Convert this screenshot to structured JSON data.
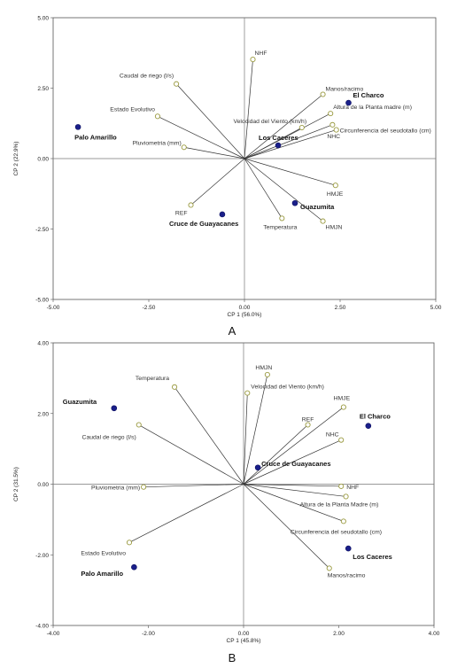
{
  "chart_data": [
    {
      "type": "scatter",
      "panel_label": "A",
      "xlabel": "CP 1 (56.0%)",
      "ylabel": "CP 2 (22.9%)",
      "xlim": [
        -5,
        5
      ],
      "ylim": [
        -5,
        5
      ],
      "xticks": [
        "-5.00",
        "-2.50",
        "0.00",
        "2.50",
        "5.00"
      ],
      "yticks": [
        "5.00",
        "2.50",
        "0.00",
        "-2.50",
        "-5.00"
      ],
      "variables": [
        {
          "name": "NHF",
          "x": 0.22,
          "y": 3.52
        },
        {
          "name": "Caudal de riego (l/s)",
          "x": -1.78,
          "y": 2.65
        },
        {
          "name": "Manos/racimo",
          "x": 2.05,
          "y": 2.28
        },
        {
          "name": "Altura de la Planta madre (m)",
          "x": 2.25,
          "y": 1.6
        },
        {
          "name": "Estado Evolutivo",
          "x": -2.27,
          "y": 1.5
        },
        {
          "name": "Velocidad del Viento (km/h)",
          "x": 1.5,
          "y": 1.1
        },
        {
          "name": "NHC",
          "x": 2.3,
          "y": 1.2
        },
        {
          "name": "Circunferencia del seudotallo (cm)",
          "x": 2.4,
          "y": 1.02
        },
        {
          "name": "Pluviometria (mm)",
          "x": -1.58,
          "y": 0.4
        },
        {
          "name": "HMJE",
          "x": 2.38,
          "y": -0.95
        },
        {
          "name": "REF",
          "x": -1.4,
          "y": -1.65
        },
        {
          "name": "Temperatura",
          "x": 0.98,
          "y": -2.12
        },
        {
          "name": "HMJN",
          "x": 2.05,
          "y": -2.22
        }
      ],
      "points": [
        {
          "name": "Palo Amarillo",
          "x": -4.35,
          "y": 1.12
        },
        {
          "name": "El Charco",
          "x": 2.72,
          "y": 1.98
        },
        {
          "name": "Los Caceres",
          "x": 0.88,
          "y": 0.47
        },
        {
          "name": "Guazumita",
          "x": 1.32,
          "y": -1.58
        },
        {
          "name": "Cruce de Guayacanes",
          "x": -0.58,
          "y": -1.98
        }
      ]
    },
    {
      "type": "scatter",
      "panel_label": "B",
      "xlabel": "CP 1 (45.8%)",
      "ylabel": "CP 2 (31.5%)",
      "xlim": [
        -4,
        4
      ],
      "ylim": [
        -4,
        4
      ],
      "xticks": [
        "-4.00",
        "-2.00",
        "0.00",
        "2.00",
        "4.00"
      ],
      "yticks": [
        "4.00",
        "2.00",
        "0.00",
        "-2.00",
        "-4.00"
      ],
      "variables": [
        {
          "name": "HMJN",
          "x": 0.5,
          "y": 3.1
        },
        {
          "name": "Temperatura",
          "x": -1.45,
          "y": 2.75
        },
        {
          "name": "Velocidad del Viento (km/h)",
          "x": 0.08,
          "y": 2.58
        },
        {
          "name": "HMJE",
          "x": 2.1,
          "y": 2.18
        },
        {
          "name": "REF",
          "x": 1.35,
          "y": 1.68
        },
        {
          "name": "NHC",
          "x": 2.05,
          "y": 1.25
        },
        {
          "name": "Caudal de riego (l/s)",
          "x": -2.2,
          "y": 1.68
        },
        {
          "name": "Pluviometria (mm)",
          "x": -2.1,
          "y": -0.08
        },
        {
          "name": "NHF",
          "x": 2.05,
          "y": -0.06
        },
        {
          "name": "Altura de la Planta Madre (m)",
          "x": 2.15,
          "y": -0.35
        },
        {
          "name": "Circunferencia del seudotallo (cm)",
          "x": 2.1,
          "y": -1.05
        },
        {
          "name": "Estado Evolutivo",
          "x": -2.4,
          "y": -1.65
        },
        {
          "name": "Manos/racimo",
          "x": 1.8,
          "y": -2.38
        }
      ],
      "points": [
        {
          "name": "Guazumita",
          "x": -2.72,
          "y": 2.15
        },
        {
          "name": "El Charco",
          "x": 2.62,
          "y": 1.65
        },
        {
          "name": "Cruce de Guayacanes",
          "x": 0.3,
          "y": 0.47
        },
        {
          "name": "Los Caceres",
          "x": 2.2,
          "y": -1.82
        },
        {
          "name": "Palo Amarillo",
          "x": -2.3,
          "y": -2.35
        }
      ]
    }
  ]
}
